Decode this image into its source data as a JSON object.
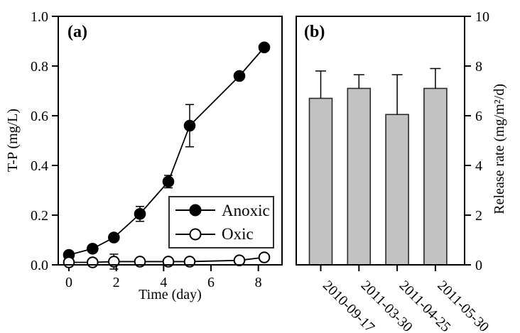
{
  "figure_type": "two-panel scientific plot",
  "colors": {
    "foreground": "#000000",
    "background": "#ffffff",
    "bar_fill": "#c2c2c2",
    "bar_edge": "#2a2a2a"
  },
  "chart_data": [
    {
      "type": "line",
      "panel_label": "(a)",
      "xlabel": "Time (day)",
      "ylabel": "T-P (mg/L)",
      "xlim": [
        -0.45,
        9.0
      ],
      "ylim": [
        0,
        1.0
      ],
      "xticks": [
        0,
        2,
        4,
        6,
        8
      ],
      "ytick_labels": [
        "0.0",
        "0.2",
        "0.4",
        "0.6",
        "0.8",
        "1.0"
      ],
      "grid": false,
      "legend_position": "lower-right",
      "x": [
        0,
        1,
        1.9,
        3,
        4.2,
        5.1,
        7.2,
        8.25
      ],
      "series": [
        {
          "name": "Anoxic",
          "marker": "filled-circle",
          "values": [
            0.04,
            0.065,
            0.11,
            0.205,
            0.335,
            0.56,
            0.76,
            0.875
          ],
          "errors": [
            0,
            0,
            0,
            0.03,
            0.025,
            0.085,
            0,
            0
          ]
        },
        {
          "name": "Oxic",
          "marker": "open-circle",
          "values": [
            0.01,
            0.01,
            0.013,
            0.013,
            0.013,
            0.013,
            0.018,
            0.03
          ],
          "errors": [
            0,
            0,
            0.03,
            0,
            0,
            0,
            0,
            0
          ]
        }
      ]
    },
    {
      "type": "bar",
      "panel_label": "(b)",
      "ylabel": "Release rate (mg/m²/d)",
      "ylim": [
        0,
        10
      ],
      "yticks": [
        0,
        2,
        4,
        6,
        8,
        10
      ],
      "grid": false,
      "categories": [
        "2010-09-17",
        "2011-03-30",
        "2011-04-25",
        "2011-05-30"
      ],
      "values": [
        6.7,
        7.1,
        6.05,
        7.1
      ],
      "errors_plus": [
        1.1,
        0.55,
        1.6,
        0.8
      ]
    }
  ]
}
